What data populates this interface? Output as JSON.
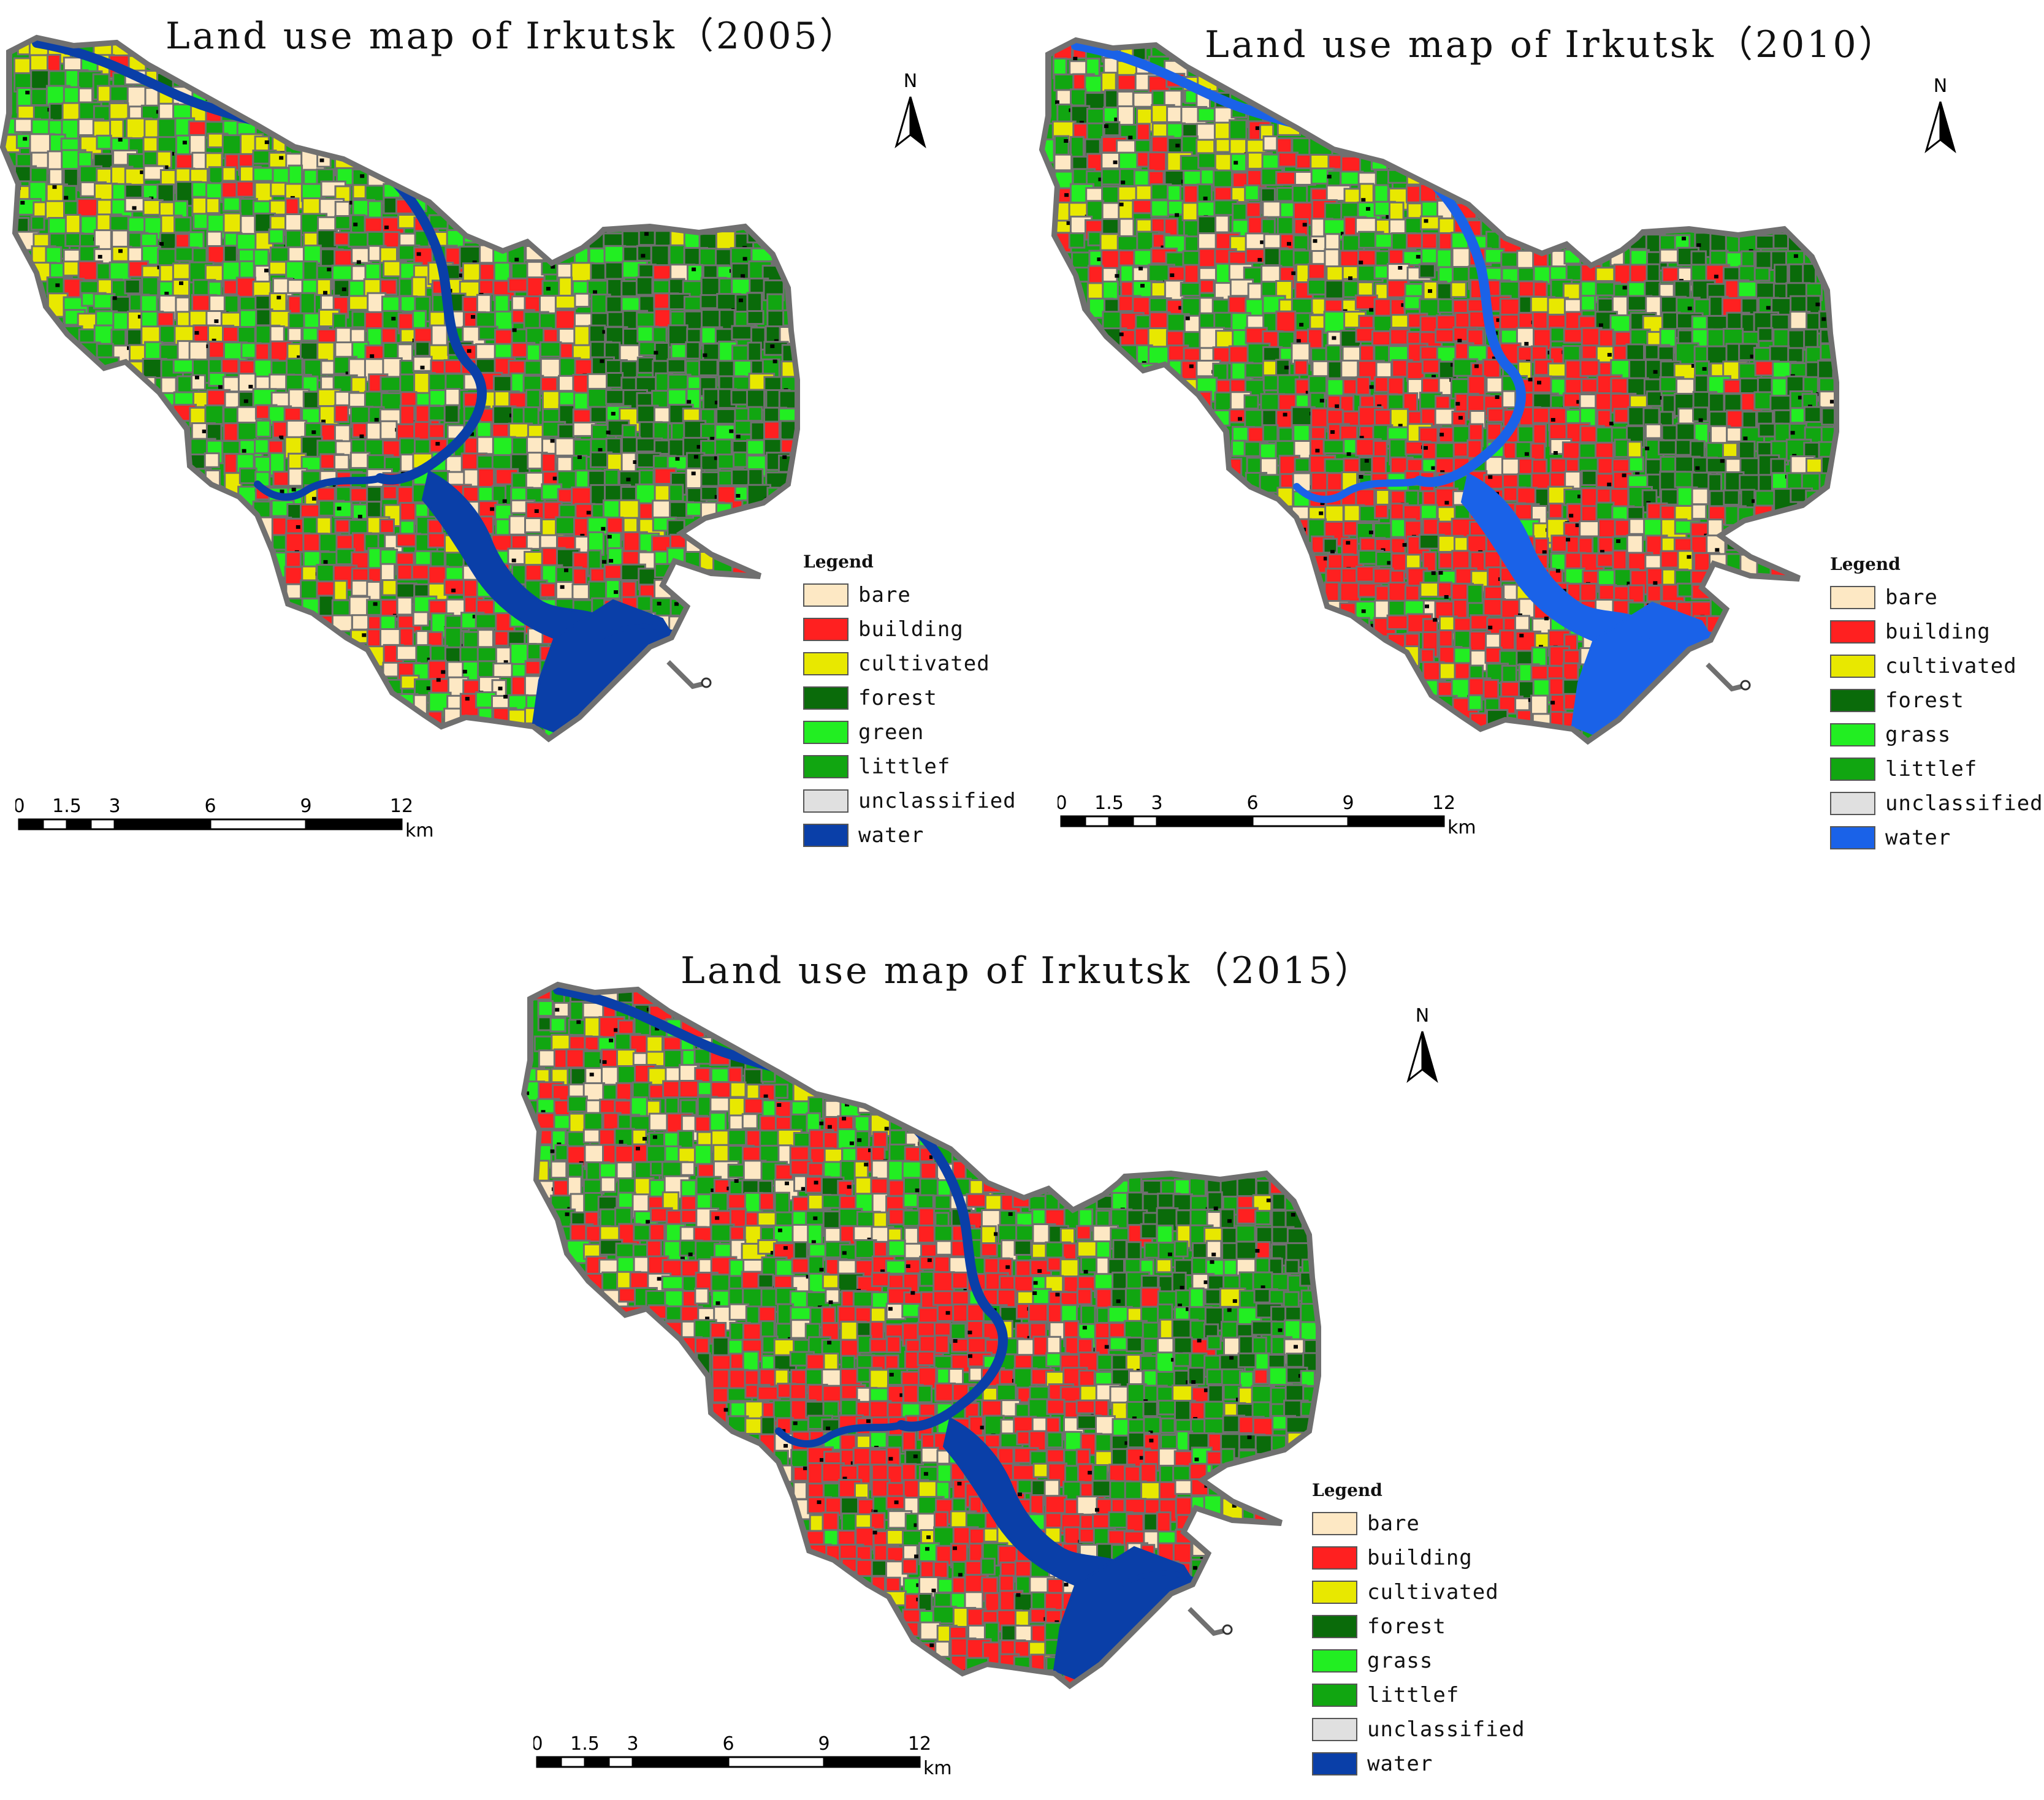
{
  "legend_colors": {
    "bare": "#fde8c4",
    "building": "#ff2020",
    "cultivated": "#e8e800",
    "forest": "#0a6b0a",
    "green": "#22ee22",
    "littlef": "#11a611",
    "unclassified": "#e0e0e0",
    "water_dark": "#0a3fa8",
    "water_bright": "#1a62e8",
    "boundary": "#707070"
  },
  "maps": [
    {
      "title": "Land use map of Irkutsk（2005）",
      "north_label": "N",
      "legend": {
        "title": "Legend",
        "items": [
          {
            "label": "bare",
            "color": "#fde8c4"
          },
          {
            "label": "building",
            "color": "#ff2020"
          },
          {
            "label": "cultivated",
            "color": "#e8e800"
          },
          {
            "label": "forest",
            "color": "#0a6b0a"
          },
          {
            "label": "green",
            "color": "#22ee22"
          },
          {
            "label": "littlef",
            "color": "#11a611"
          },
          {
            "label": "unclassified",
            "color": "#e0e0e0"
          },
          {
            "label": "water",
            "color": "#0a3fa8"
          }
        ]
      },
      "scale": {
        "ticks": [
          "0",
          "1.5",
          "3",
          "6",
          "9",
          "12"
        ],
        "unit": "km"
      }
    },
    {
      "title": "Land use map of Irkutsk（2010）",
      "north_label": "N",
      "legend": {
        "title": "Legend",
        "items": [
          {
            "label": "bare",
            "color": "#fde8c4"
          },
          {
            "label": "building",
            "color": "#ff2020"
          },
          {
            "label": "cultivated",
            "color": "#e8e800"
          },
          {
            "label": "forest",
            "color": "#0a6b0a"
          },
          {
            "label": "grass",
            "color": "#22ee22"
          },
          {
            "label": "littlef",
            "color": "#11a611"
          },
          {
            "label": "unclassified",
            "color": "#e0e0e0"
          },
          {
            "label": "water",
            "color": "#1a62e8"
          }
        ]
      },
      "scale": {
        "ticks": [
          "0",
          "1.5",
          "3",
          "6",
          "9",
          "12"
        ],
        "unit": "km"
      }
    },
    {
      "title": "Land use map of Irkutsk（2015）",
      "north_label": "N",
      "legend": {
        "title": "Legend",
        "items": [
          {
            "label": "bare",
            "color": "#fde8c4"
          },
          {
            "label": "building",
            "color": "#ff2020"
          },
          {
            "label": "cultivated",
            "color": "#e8e800"
          },
          {
            "label": "forest",
            "color": "#0a6b0a"
          },
          {
            "label": "grass",
            "color": "#22ee22"
          },
          {
            "label": "littlef",
            "color": "#11a611"
          },
          {
            "label": "unclassified",
            "color": "#e0e0e0"
          },
          {
            "label": "water",
            "color": "#0a3fa8"
          }
        ]
      },
      "scale": {
        "ticks": [
          "0",
          "1.5",
          "3",
          "6",
          "9",
          "12"
        ],
        "unit": "km"
      }
    }
  ]
}
